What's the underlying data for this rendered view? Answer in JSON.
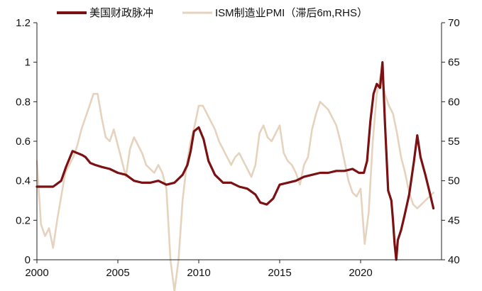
{
  "chart_data": {
    "type": "line",
    "legend": {
      "placement": "top-center"
    },
    "grid": false,
    "x_axis": {
      "range": [
        2000,
        2025
      ],
      "ticks": [
        2000,
        2005,
        2010,
        2015,
        2020
      ],
      "tick_labels": [
        "2000",
        "2005",
        "2010",
        "2015",
        "2020"
      ]
    },
    "y_left": {
      "range": [
        0,
        1.2
      ],
      "ticks": [
        0,
        0.2,
        0.4,
        0.6,
        0.8,
        1.0,
        1.2
      ],
      "tick_labels": [
        "0",
        "0.2",
        "0.4",
        "0.6",
        "0.8",
        "1",
        "1.2"
      ]
    },
    "y_right": {
      "range": [
        40,
        70
      ],
      "ticks": [
        40,
        45,
        50,
        55,
        60,
        65,
        70
      ],
      "tick_labels": [
        "40",
        "45",
        "50",
        "55",
        "60",
        "65",
        "70"
      ]
    },
    "series": [
      {
        "name": "美国财政脉冲",
        "axis": "left",
        "color": "#7B1113",
        "x": [
          2000.0,
          2000.5,
          2001.0,
          2001.5,
          2001.8,
          2002.2,
          2002.5,
          2002.8,
          2003.0,
          2003.3,
          2003.6,
          2004.0,
          2004.5,
          2005.0,
          2005.5,
          2006.0,
          2006.5,
          2007.0,
          2007.5,
          2008.0,
          2008.5,
          2009.0,
          2009.3,
          2009.5,
          2009.7,
          2010.0,
          2010.3,
          2010.6,
          2011.0,
          2011.5,
          2012.0,
          2012.5,
          2013.0,
          2013.5,
          2013.8,
          2014.2,
          2014.6,
          2015.0,
          2015.5,
          2016.0,
          2016.5,
          2017.0,
          2017.5,
          2018.0,
          2018.5,
          2019.0,
          2019.5,
          2019.9,
          2020.2,
          2020.4,
          2020.6,
          2020.8,
          2021.0,
          2021.2,
          2021.35,
          2021.5,
          2021.7,
          2021.9,
          2022.0,
          2022.1,
          2022.2,
          2022.3,
          2022.5,
          2022.7,
          2023.0,
          2023.3,
          2023.5,
          2023.7,
          2024.0,
          2024.3,
          2024.5
        ],
        "y": [
          0.37,
          0.37,
          0.37,
          0.4,
          0.47,
          0.55,
          0.54,
          0.53,
          0.52,
          0.49,
          0.48,
          0.47,
          0.46,
          0.44,
          0.43,
          0.4,
          0.39,
          0.39,
          0.4,
          0.38,
          0.39,
          0.43,
          0.48,
          0.55,
          0.65,
          0.67,
          0.61,
          0.5,
          0.43,
          0.39,
          0.39,
          0.37,
          0.36,
          0.33,
          0.29,
          0.28,
          0.31,
          0.38,
          0.39,
          0.4,
          0.42,
          0.43,
          0.44,
          0.44,
          0.45,
          0.45,
          0.46,
          0.44,
          0.44,
          0.5,
          0.7,
          0.84,
          0.89,
          0.87,
          1.0,
          0.7,
          0.35,
          0.3,
          0.2,
          0.08,
          0.0,
          0.1,
          0.15,
          0.22,
          0.33,
          0.5,
          0.63,
          0.52,
          0.43,
          0.33,
          0.26
        ]
      },
      {
        "name": "ISM制造业PMI（滞后6m,RHS）",
        "axis": "right",
        "color": "#E6D3BE",
        "x": [
          2000.0,
          2000.25,
          2000.5,
          2000.75,
          2001.0,
          2001.25,
          2001.5,
          2001.75,
          2002.0,
          2002.25,
          2002.5,
          2002.75,
          2003.0,
          2003.25,
          2003.5,
          2003.75,
          2004.0,
          2004.25,
          2004.5,
          2004.75,
          2005.0,
          2005.25,
          2005.5,
          2005.75,
          2006.0,
          2006.25,
          2006.5,
          2006.75,
          2007.0,
          2007.25,
          2007.5,
          2007.75,
          2008.0,
          2008.25,
          2008.5,
          2008.75,
          2009.0,
          2009.25,
          2009.5,
          2009.75,
          2010.0,
          2010.25,
          2010.5,
          2010.75,
          2011.0,
          2011.25,
          2011.5,
          2011.75,
          2012.0,
          2012.25,
          2012.5,
          2012.75,
          2013.0,
          2013.25,
          2013.5,
          2013.75,
          2014.0,
          2014.25,
          2014.5,
          2014.75,
          2015.0,
          2015.25,
          2015.5,
          2015.75,
          2016.0,
          2016.25,
          2016.5,
          2016.75,
          2017.0,
          2017.25,
          2017.5,
          2017.75,
          2018.0,
          2018.25,
          2018.5,
          2018.75,
          2019.0,
          2019.25,
          2019.5,
          2019.75,
          2020.0,
          2020.25,
          2020.5,
          2020.75,
          2021.0,
          2021.25,
          2021.5,
          2021.75,
          2022.0,
          2022.25,
          2022.5,
          2022.75,
          2023.0,
          2023.25,
          2023.5,
          2023.75,
          2024.0,
          2024.25,
          2024.5
        ],
        "y": [
          52.5,
          44.5,
          43.0,
          44.0,
          41.5,
          45.0,
          48.0,
          51.0,
          52.0,
          53.0,
          54.5,
          56.5,
          58.0,
          59.5,
          61.0,
          61.0,
          58.0,
          55.5,
          55.0,
          56.5,
          54.5,
          52.5,
          50.5,
          54.0,
          55.5,
          54.5,
          53.5,
          52.0,
          51.5,
          51.0,
          52.0,
          51.0,
          49.0,
          40.0,
          36.0,
          40.0,
          47.5,
          52.0,
          55.0,
          57.0,
          59.5,
          59.5,
          58.5,
          57.5,
          56.5,
          55.0,
          54.0,
          53.0,
          52.0,
          53.0,
          53.5,
          52.5,
          51.5,
          50.5,
          52.0,
          56.0,
          57.0,
          55.5,
          55.0,
          56.0,
          57.0,
          53.5,
          52.5,
          52.0,
          51.0,
          49.5,
          52.0,
          53.0,
          56.5,
          58.5,
          60.0,
          59.5,
          59.0,
          58.0,
          57.0,
          55.0,
          52.5,
          50.0,
          48.5,
          48.0,
          49.0,
          42.0,
          46.0,
          55.0,
          61.0,
          63.5,
          61.0,
          59.5,
          58.5,
          56.0,
          53.0,
          51.0,
          48.5,
          47.0,
          46.5,
          47.0,
          47.5,
          48.0,
          48.5
        ]
      }
    ]
  }
}
